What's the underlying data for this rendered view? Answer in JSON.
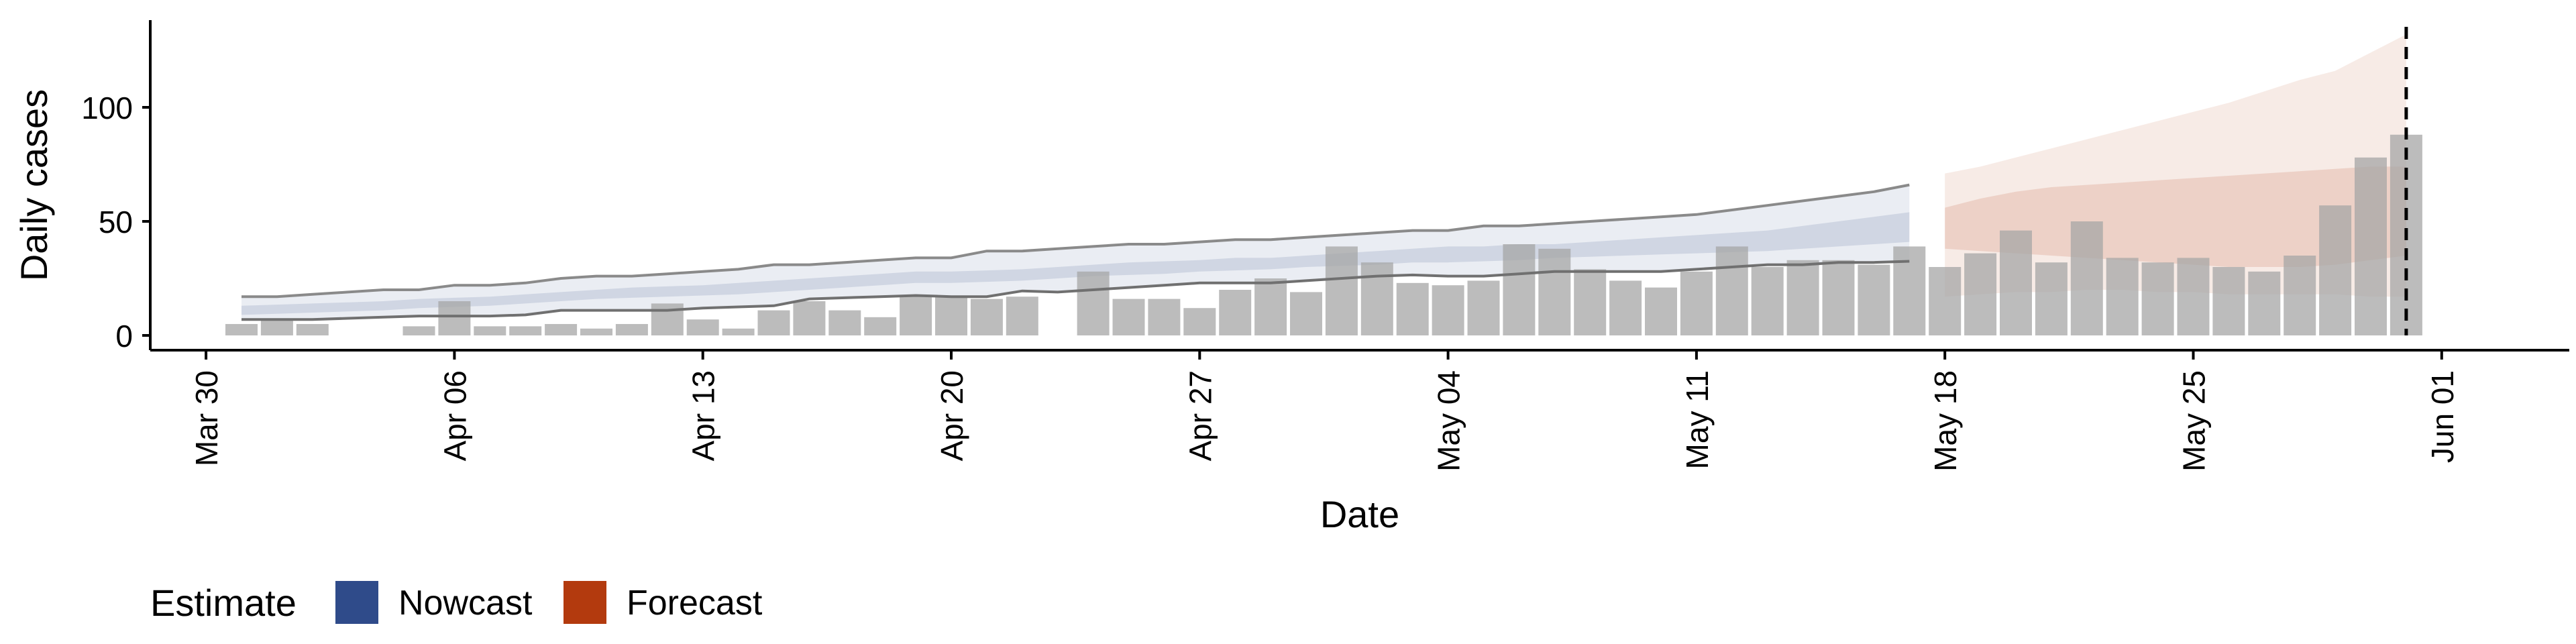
{
  "chart_data": {
    "type": "bar",
    "title": "",
    "xlabel": "Date",
    "ylabel": "Daily cases",
    "x_start": "2020-03-31",
    "x_ticks": [
      "Mar 30",
      "Apr 06",
      "Apr 13",
      "Apr 20",
      "Apr 27",
      "May 04",
      "May 11",
      "May 18",
      "May 25",
      "Jun 01"
    ],
    "y_ticks": [
      "0",
      "50",
      "100"
    ],
    "ylim": [
      -5,
      138
    ],
    "grid": false,
    "legend": {
      "title": "Estimate",
      "position": "bottom-left",
      "items": [
        {
          "label": "Nowcast",
          "color": "#2f4b8a"
        },
        {
          "label": "Forecast",
          "color": "#b33a0e"
        }
      ]
    },
    "series": [
      {
        "name": "Daily cases",
        "kind": "bar",
        "color": "#a6a6a6",
        "values": [
          5,
          7,
          5,
          null,
          null,
          4,
          15,
          4,
          4,
          5,
          3,
          5,
          14,
          7,
          3,
          11,
          15,
          11,
          8,
          17,
          17,
          16,
          17,
          null,
          28,
          16,
          16,
          12,
          20,
          25,
          19,
          39,
          32,
          23,
          22,
          24,
          40,
          38,
          29,
          24,
          21,
          28,
          39,
          30,
          33,
          33,
          31,
          39,
          30,
          36,
          46,
          32,
          50,
          34,
          32,
          34,
          30,
          28,
          35,
          57,
          78,
          88
        ]
      },
      {
        "name": "Nowcast",
        "kind": "band",
        "color": "#2f4b8a",
        "x_range": [
          "2020-03-31",
          "2020-05-17"
        ],
        "outer_lower": [
          7,
          7,
          7,
          7.5,
          8,
          8.5,
          8.5,
          8.5,
          9,
          11,
          11,
          11,
          11,
          12,
          12.5,
          13,
          16,
          16.5,
          17,
          17.5,
          17,
          17,
          19.5,
          19,
          20,
          21,
          22,
          23,
          23,
          23,
          24,
          25,
          26,
          26.5,
          26,
          26,
          27,
          28,
          28,
          28,
          28,
          29,
          30,
          31,
          31,
          32,
          32,
          32.5
        ],
        "inner_lower": [
          9,
          9.5,
          10,
          10.5,
          11,
          12,
          12.5,
          13,
          14,
          15,
          16,
          16.5,
          17,
          17.5,
          18,
          19,
          20,
          21,
          22,
          23,
          23,
          23.5,
          24,
          25,
          26,
          26.5,
          27,
          28,
          28.5,
          29,
          30,
          30.5,
          31,
          32,
          32,
          32.5,
          33,
          34,
          34.5,
          35,
          35.5,
          36,
          36.5,
          37,
          38,
          39,
          40,
          41
        ],
        "inner_upper": [
          13,
          13.5,
          14,
          14.5,
          15,
          16,
          16.5,
          17,
          18,
          19,
          20,
          21,
          21.5,
          22,
          23,
          24,
          25,
          26,
          27,
          28,
          28,
          28.5,
          29,
          30,
          31,
          32,
          32.5,
          33,
          34,
          34,
          35,
          36,
          37,
          38,
          39,
          39,
          40,
          40,
          41,
          42,
          43,
          44,
          45,
          46,
          48,
          50,
          52,
          54
        ],
        "outer_upper": [
          17,
          17,
          18,
          19,
          20,
          20,
          22,
          22,
          23,
          25,
          26,
          26,
          27,
          28,
          29,
          31,
          31,
          32,
          33,
          34,
          34,
          37,
          37,
          38,
          39,
          40,
          40,
          41,
          42,
          42,
          43,
          44,
          45,
          46,
          46,
          48,
          48,
          49,
          50,
          51,
          52,
          53,
          55,
          57,
          59,
          61,
          63,
          66
        ]
      },
      {
        "name": "Forecast",
        "kind": "band",
        "color": "#b33a0e",
        "x_range": [
          "2020-05-18",
          "2020-05-31"
        ],
        "outer_lower": [
          17,
          18,
          19,
          19,
          20,
          20,
          19,
          19,
          18,
          18,
          18,
          18,
          17,
          17
        ],
        "inner_lower": [
          38,
          37,
          36,
          35,
          34,
          33,
          32,
          31,
          30,
          30,
          30,
          31,
          33,
          35
        ],
        "inner_upper": [
          56,
          60,
          63,
          65,
          66,
          67,
          68,
          69,
          70,
          71,
          72,
          73,
          74,
          74
        ],
        "outer_upper": [
          71,
          74,
          78,
          82,
          86,
          90,
          94,
          98,
          102,
          107,
          112,
          116,
          124,
          132
        ]
      }
    ],
    "annotations": [
      {
        "type": "vertical-dashed-line",
        "date": "2020-05-31"
      }
    ]
  }
}
